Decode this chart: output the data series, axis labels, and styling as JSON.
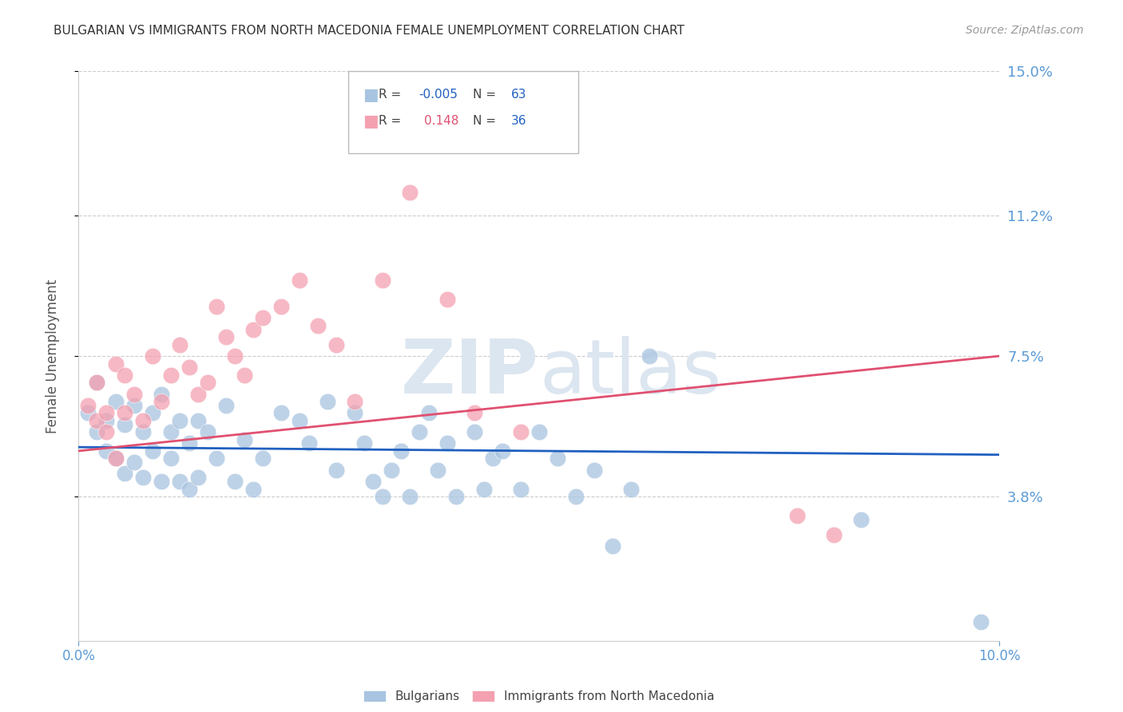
{
  "title": "BULGARIAN VS IMMIGRANTS FROM NORTH MACEDONIA FEMALE UNEMPLOYMENT CORRELATION CHART",
  "source": "Source: ZipAtlas.com",
  "ylabel": "Female Unemployment",
  "xmin": 0.0,
  "xmax": 0.1,
  "ymin": 0.0,
  "ymax": 0.15,
  "yticks": [
    0.038,
    0.075,
    0.112,
    0.15
  ],
  "ytick_labels": [
    "3.8%",
    "7.5%",
    "11.2%",
    "15.0%"
  ],
  "grid_color": "#cccccc",
  "background_color": "#ffffff",
  "blue_color": "#a8c4e0",
  "pink_color": "#f4a0b0",
  "trend_blue_color": "#2060c0",
  "trend_pink_color": "#e05070",
  "axis_label_color": "#5b9bd5",
  "title_color": "#333333",
  "watermark_color": "#dce6f0",
  "legend_R_color_blue": "#2060c0",
  "legend_R_color_pink": "#e05070",
  "legend_N_color": "#2060c0",
  "blue_name": "Bulgarians",
  "pink_name": "Immigrants from North Macedonia",
  "blue_R": "-0.005",
  "blue_N": "63",
  "pink_R": "0.148",
  "pink_N": "36",
  "blue_x": [
    0.001,
    0.002,
    0.002,
    0.003,
    0.003,
    0.004,
    0.004,
    0.005,
    0.005,
    0.006,
    0.006,
    0.007,
    0.007,
    0.008,
    0.008,
    0.009,
    0.009,
    0.01,
    0.01,
    0.011,
    0.011,
    0.012,
    0.012,
    0.013,
    0.013,
    0.014,
    0.015,
    0.016,
    0.017,
    0.018,
    0.019,
    0.02,
    0.022,
    0.024,
    0.025,
    0.027,
    0.028,
    0.03,
    0.031,
    0.032,
    0.033,
    0.034,
    0.035,
    0.036,
    0.037,
    0.038,
    0.039,
    0.04,
    0.041,
    0.043,
    0.044,
    0.045,
    0.046,
    0.048,
    0.05,
    0.052,
    0.054,
    0.056,
    0.058,
    0.06,
    0.062,
    0.085,
    0.098
  ],
  "blue_y": [
    0.06,
    0.068,
    0.055,
    0.058,
    0.05,
    0.063,
    0.048,
    0.057,
    0.044,
    0.062,
    0.047,
    0.055,
    0.043,
    0.06,
    0.05,
    0.065,
    0.042,
    0.055,
    0.048,
    0.058,
    0.042,
    0.052,
    0.04,
    0.058,
    0.043,
    0.055,
    0.048,
    0.062,
    0.042,
    0.053,
    0.04,
    0.048,
    0.06,
    0.058,
    0.052,
    0.063,
    0.045,
    0.06,
    0.052,
    0.042,
    0.038,
    0.045,
    0.05,
    0.038,
    0.055,
    0.06,
    0.045,
    0.052,
    0.038,
    0.055,
    0.04,
    0.048,
    0.05,
    0.04,
    0.055,
    0.048,
    0.038,
    0.045,
    0.025,
    0.04,
    0.075,
    0.032,
    0.005
  ],
  "pink_x": [
    0.001,
    0.002,
    0.002,
    0.003,
    0.003,
    0.004,
    0.004,
    0.005,
    0.005,
    0.006,
    0.007,
    0.008,
    0.009,
    0.01,
    0.011,
    0.012,
    0.013,
    0.014,
    0.015,
    0.016,
    0.017,
    0.018,
    0.019,
    0.02,
    0.022,
    0.024,
    0.026,
    0.028,
    0.03,
    0.033,
    0.036,
    0.04,
    0.043,
    0.048,
    0.078,
    0.082
  ],
  "pink_y": [
    0.062,
    0.058,
    0.068,
    0.06,
    0.055,
    0.073,
    0.048,
    0.07,
    0.06,
    0.065,
    0.058,
    0.075,
    0.063,
    0.07,
    0.078,
    0.072,
    0.065,
    0.068,
    0.088,
    0.08,
    0.075,
    0.07,
    0.082,
    0.085,
    0.088,
    0.095,
    0.083,
    0.078,
    0.063,
    0.095,
    0.118,
    0.09,
    0.06,
    0.055,
    0.033,
    0.028
  ],
  "blue_trend_x": [
    0.0,
    0.1
  ],
  "blue_trend_y": [
    0.051,
    0.049
  ],
  "pink_trend_x": [
    0.0,
    0.1
  ],
  "pink_trend_y": [
    0.05,
    0.075
  ]
}
